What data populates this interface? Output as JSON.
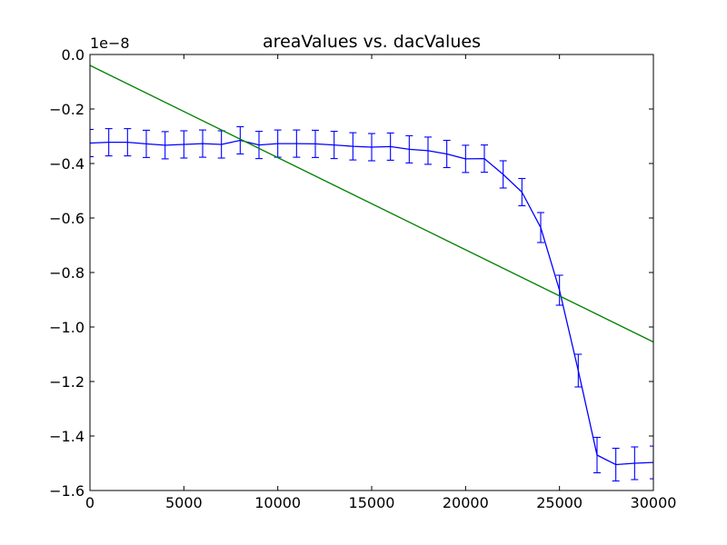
{
  "chart_data": {
    "type": "line",
    "title": "areaValues vs. dacValues",
    "xlabel": "",
    "ylabel": "",
    "y_offset_label": "1e−8",
    "xlim": [
      0,
      30000
    ],
    "ylim": [
      -1.6,
      0.0
    ],
    "x_ticks": [
      0,
      5000,
      10000,
      15000,
      20000,
      25000,
      30000
    ],
    "x_tick_labels": [
      "0",
      "5000",
      "10000",
      "15000",
      "20000",
      "25000",
      "30000"
    ],
    "y_ticks": [
      0.0,
      -0.2,
      -0.4,
      -0.6,
      -0.8,
      -1.0,
      -1.2,
      -1.4,
      -1.6
    ],
    "y_tick_labels": [
      "0.0",
      "−0.2",
      "−0.4",
      "−0.6",
      "−0.8",
      "−1.0",
      "−1.2",
      "−1.4",
      "−1.6"
    ],
    "grid": false,
    "legend": "none",
    "series": [
      {
        "color": "#0000ff",
        "errorbars": true,
        "x": [
          0,
          1000,
          2000,
          3000,
          4000,
          5000,
          6000,
          7000,
          8000,
          9000,
          10000,
          11000,
          12000,
          13000,
          14000,
          15000,
          16000,
          17000,
          18000,
          19000,
          20000,
          21000,
          22000,
          23000,
          24000,
          25000,
          26000,
          27000,
          28000,
          29000,
          30000
        ],
        "y": [
          -0.325,
          -0.322,
          -0.322,
          -0.328,
          -0.333,
          -0.33,
          -0.327,
          -0.33,
          -0.315,
          -0.332,
          -0.327,
          -0.327,
          -0.328,
          -0.332,
          -0.337,
          -0.34,
          -0.338,
          -0.348,
          -0.353,
          -0.365,
          -0.383,
          -0.382,
          -0.44,
          -0.505,
          -0.635,
          -0.865,
          -1.16,
          -1.47,
          -1.505,
          -1.5,
          -1.497
        ],
        "err": [
          0.05,
          0.05,
          0.05,
          0.05,
          0.05,
          0.05,
          0.05,
          0.05,
          0.05,
          0.05,
          0.05,
          0.05,
          0.05,
          0.05,
          0.05,
          0.05,
          0.05,
          0.05,
          0.05,
          0.05,
          0.05,
          0.05,
          0.05,
          0.05,
          0.055,
          0.055,
          0.06,
          0.065,
          0.06,
          0.06,
          0.06
        ]
      },
      {
        "color": "#008000",
        "errorbars": false,
        "x": [
          0,
          30000
        ],
        "y": [
          -0.04,
          -1.055
        ]
      }
    ]
  }
}
